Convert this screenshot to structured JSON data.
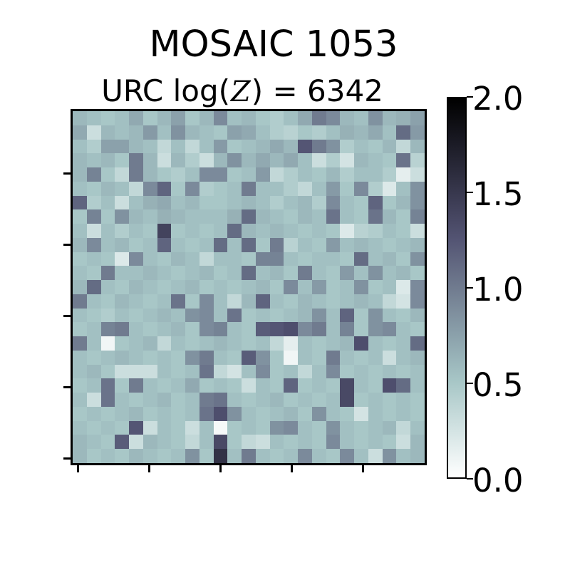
{
  "figure": {
    "suptitle": "MOSAIC 1053",
    "axes_title_full": "URC log(𝒵) = 6342",
    "axes_title_prefix": "URC log(",
    "axes_title_math_symbol_unicode": "𝒵",
    "axes_title_math_symbol_ascii": "Z",
    "axes_title_suffix": ") = 6342"
  },
  "colors": {
    "background": "#ffffff",
    "text": "#000000",
    "spine": "#000000"
  },
  "chart_data": {
    "type": "heatmap",
    "title": "MOSAIC 1053",
    "subtitle": "URC log(𝒵) = 6342",
    "grid_size": [
      25,
      25
    ],
    "colormap": "bone_r",
    "vmin": 0.0,
    "vmax": 2.0,
    "x_tick_positions": [
      0,
      5,
      10,
      15,
      20
    ],
    "y_tick_positions": [
      0,
      5,
      10,
      15,
      20
    ],
    "tick_labels_shown": false,
    "colorbar_ticks": [
      0.0,
      0.5,
      1.0,
      1.5,
      2.0
    ],
    "colorbar_tick_labels": [
      "0.0",
      "0.5",
      "1.0",
      "1.5",
      "2.0"
    ],
    "legend": "none",
    "values": [
      [
        0.6,
        0.55,
        0.5,
        0.55,
        0.7,
        0.5,
        0.6,
        0.75,
        0.5,
        0.6,
        0.9,
        0.55,
        0.6,
        0.5,
        0.45,
        0.55,
        0.7,
        1.0,
        0.9,
        0.6,
        0.55,
        0.85,
        0.6,
        0.65,
        0.75
      ],
      [
        0.7,
        0.3,
        0.6,
        0.55,
        0.6,
        0.8,
        0.55,
        0.85,
        0.6,
        0.55,
        0.5,
        0.75,
        0.7,
        0.55,
        0.45,
        0.4,
        0.5,
        0.45,
        0.55,
        0.65,
        0.6,
        0.7,
        0.55,
        1.1,
        0.8
      ],
      [
        0.55,
        0.45,
        0.75,
        0.75,
        0.6,
        0.55,
        0.35,
        0.55,
        0.35,
        0.55,
        0.8,
        0.5,
        0.55,
        0.6,
        0.7,
        0.6,
        1.25,
        1.0,
        0.85,
        0.45,
        0.55,
        0.5,
        0.6,
        0.35,
        0.6
      ],
      [
        0.6,
        0.55,
        0.6,
        0.5,
        1.0,
        0.6,
        0.3,
        0.6,
        0.45,
        0.3,
        0.6,
        0.85,
        0.6,
        0.7,
        0.6,
        0.7,
        0.55,
        0.3,
        0.45,
        0.25,
        0.6,
        0.55,
        0.5,
        1.05,
        0.4
      ],
      [
        0.6,
        0.95,
        0.5,
        0.35,
        1.0,
        0.6,
        0.5,
        0.45,
        0.55,
        0.9,
        0.9,
        0.5,
        0.55,
        0.8,
        0.35,
        0.45,
        0.55,
        0.5,
        0.6,
        0.45,
        0.55,
        0.55,
        0.45,
        0.15,
        0.3
      ],
      [
        0.55,
        0.5,
        0.6,
        0.55,
        0.35,
        0.9,
        1.15,
        0.5,
        0.9,
        0.45,
        0.5,
        0.55,
        1.0,
        0.55,
        0.55,
        0.45,
        0.35,
        0.55,
        0.8,
        0.5,
        0.9,
        0.45,
        0.2,
        0.55,
        0.85
      ],
      [
        1.15,
        0.45,
        0.55,
        0.3,
        0.55,
        0.65,
        0.7,
        0.55,
        0.6,
        0.5,
        0.5,
        0.55,
        0.6,
        0.55,
        0.45,
        0.55,
        0.6,
        0.45,
        0.9,
        0.55,
        0.5,
        1.15,
        0.5,
        0.6,
        0.85
      ],
      [
        0.5,
        0.95,
        0.5,
        0.85,
        0.6,
        0.55,
        0.65,
        0.6,
        0.55,
        0.55,
        0.55,
        0.65,
        1.1,
        0.6,
        0.55,
        0.5,
        0.6,
        0.55,
        1.05,
        0.55,
        0.5,
        1.05,
        0.6,
        0.5,
        0.95
      ],
      [
        0.55,
        0.3,
        0.55,
        0.45,
        0.55,
        0.5,
        1.4,
        0.5,
        0.55,
        0.5,
        0.55,
        1.1,
        0.6,
        0.55,
        0.6,
        0.55,
        0.5,
        0.55,
        0.5,
        0.2,
        0.4,
        0.45,
        0.55,
        0.5,
        0.3
      ],
      [
        0.6,
        0.9,
        0.55,
        0.6,
        0.5,
        0.55,
        1.15,
        0.55,
        0.5,
        0.55,
        1.1,
        0.55,
        1.1,
        0.5,
        1.0,
        0.4,
        0.55,
        0.5,
        0.8,
        0.55,
        0.6,
        0.55,
        0.5,
        0.55,
        0.6
      ],
      [
        0.5,
        0.55,
        0.5,
        0.2,
        0.9,
        0.55,
        0.5,
        0.6,
        0.55,
        0.35,
        0.55,
        0.55,
        0.5,
        0.95,
        0.95,
        0.55,
        0.5,
        0.55,
        0.55,
        0.5,
        1.1,
        0.55,
        0.6,
        0.5,
        0.85
      ],
      [
        0.55,
        0.5,
        1.0,
        0.55,
        0.55,
        0.6,
        0.55,
        0.5,
        0.55,
        0.6,
        0.5,
        0.55,
        1.1,
        0.55,
        0.6,
        0.5,
        1.0,
        0.55,
        0.5,
        0.8,
        0.55,
        0.85,
        0.55,
        0.6,
        0.5
      ],
      [
        0.6,
        1.1,
        0.55,
        0.5,
        0.6,
        0.55,
        0.5,
        0.55,
        0.6,
        0.5,
        0.55,
        0.5,
        0.55,
        0.6,
        0.5,
        0.9,
        0.55,
        0.8,
        0.5,
        0.55,
        0.85,
        0.5,
        0.55,
        0.2,
        0.9
      ],
      [
        1.0,
        0.55,
        0.5,
        0.6,
        0.55,
        0.5,
        0.55,
        1.05,
        0.5,
        0.9,
        0.55,
        0.35,
        0.6,
        1.15,
        0.55,
        0.5,
        0.6,
        0.55,
        0.5,
        0.55,
        0.6,
        0.55,
        0.35,
        0.25,
        0.9
      ],
      [
        0.55,
        0.5,
        0.45,
        0.55,
        0.5,
        0.55,
        0.6,
        0.55,
        0.85,
        0.9,
        0.55,
        1.05,
        0.5,
        0.55,
        0.5,
        0.55,
        0.6,
        0.85,
        0.55,
        1.15,
        0.5,
        0.85,
        0.55,
        0.5,
        0.6
      ],
      [
        0.5,
        0.55,
        0.95,
        1.0,
        0.55,
        0.5,
        0.55,
        0.6,
        0.5,
        0.9,
        0.95,
        0.55,
        0.5,
        1.2,
        1.25,
        1.3,
        0.9,
        1.0,
        0.55,
        0.95,
        0.5,
        0.85,
        0.9,
        0.55,
        0.5
      ],
      [
        1.0,
        0.55,
        0.08,
        0.5,
        0.55,
        0.6,
        0.35,
        0.55,
        0.5,
        0.55,
        0.6,
        0.55,
        0.5,
        0.55,
        0.35,
        0.15,
        0.55,
        0.5,
        0.55,
        0.6,
        1.3,
        0.55,
        0.5,
        0.55,
        1.1
      ],
      [
        0.55,
        0.5,
        0.55,
        0.6,
        0.55,
        0.5,
        0.55,
        0.5,
        0.85,
        1.0,
        0.55,
        0.5,
        1.2,
        0.85,
        0.5,
        0.08,
        0.55,
        0.5,
        1.0,
        0.55,
        0.5,
        0.55,
        0.3,
        0.55,
        0.6
      ],
      [
        0.55,
        0.6,
        0.5,
        0.3,
        0.3,
        0.3,
        0.55,
        0.5,
        0.55,
        1.05,
        0.35,
        0.25,
        0.55,
        0.9,
        0.5,
        0.55,
        0.35,
        0.55,
        0.9,
        0.5,
        0.55,
        0.5,
        0.55,
        0.5,
        0.55
      ],
      [
        0.5,
        0.55,
        1.05,
        0.5,
        1.0,
        0.55,
        0.5,
        0.55,
        0.7,
        0.5,
        0.55,
        0.5,
        0.3,
        0.55,
        0.5,
        1.15,
        0.5,
        0.55,
        0.5,
        1.35,
        0.55,
        0.5,
        1.3,
        1.1,
        0.55
      ],
      [
        0.55,
        0.3,
        1.05,
        0.55,
        0.5,
        0.55,
        0.6,
        0.5,
        0.55,
        1.0,
        1.05,
        0.55,
        0.5,
        0.55,
        0.6,
        0.5,
        0.55,
        0.5,
        0.55,
        1.35,
        0.5,
        0.55,
        0.5,
        0.55,
        0.5
      ],
      [
        0.5,
        0.55,
        0.5,
        0.55,
        0.6,
        0.5,
        0.55,
        0.5,
        0.55,
        1.05,
        1.3,
        0.85,
        0.55,
        0.5,
        0.55,
        0.6,
        0.5,
        0.85,
        0.55,
        0.5,
        0.25,
        0.55,
        0.5,
        0.55,
        0.5
      ],
      [
        0.55,
        0.5,
        0.55,
        0.5,
        1.25,
        0.3,
        0.55,
        0.5,
        0.3,
        0.55,
        0.05,
        0.5,
        0.55,
        0.5,
        0.85,
        0.9,
        0.55,
        0.5,
        0.85,
        0.55,
        0.5,
        0.55,
        0.6,
        0.35,
        0.55
      ],
      [
        0.6,
        0.55,
        0.5,
        1.2,
        0.3,
        0.6,
        0.55,
        0.5,
        0.35,
        0.55,
        1.35,
        0.5,
        0.35,
        0.3,
        0.55,
        0.5,
        0.55,
        0.5,
        0.9,
        0.55,
        0.5,
        0.55,
        0.5,
        0.3,
        0.6
      ],
      [
        0.6,
        0.5,
        0.55,
        0.5,
        0.6,
        0.55,
        0.5,
        0.55,
        0.85,
        0.5,
        1.55,
        0.55,
        1.0,
        0.55,
        0.5,
        0.55,
        0.9,
        0.55,
        0.5,
        0.9,
        0.55,
        0.3,
        0.85,
        0.55,
        0.6
      ]
    ]
  }
}
